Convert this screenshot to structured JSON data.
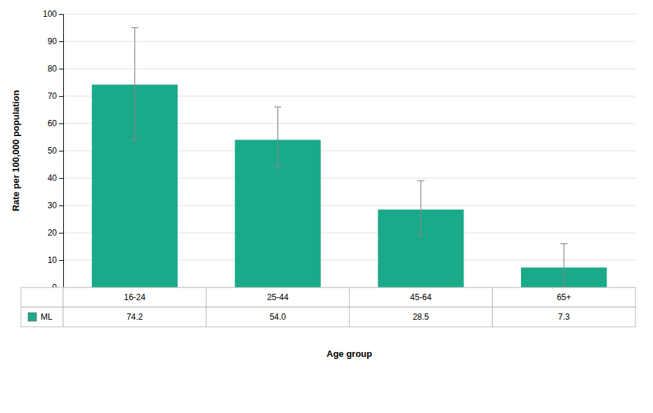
{
  "chart_data": {
    "type": "bar",
    "categories": [
      "16-24",
      "25-44",
      "45-64",
      "65+"
    ],
    "series": [
      {
        "name": "ML",
        "color": "#1aaa8a",
        "values": [
          74.2,
          54.0,
          28.5,
          7.3
        ],
        "value_labels": [
          "74.2",
          "54.0",
          "28.5",
          "7.3"
        ],
        "errors_upper": [
          20.8,
          12.0,
          10.5,
          8.7
        ],
        "errors_lower": [
          20.2,
          10.0,
          9.5,
          7.3
        ]
      }
    ],
    "ylabel": "Rate per 100,000 population",
    "xlabel": "Age group",
    "ylim": [
      0,
      100
    ],
    "yticks": [
      0,
      10,
      20,
      30,
      40,
      50,
      60,
      70,
      80,
      90,
      100
    ],
    "grid": true,
    "data_labels": true
  }
}
